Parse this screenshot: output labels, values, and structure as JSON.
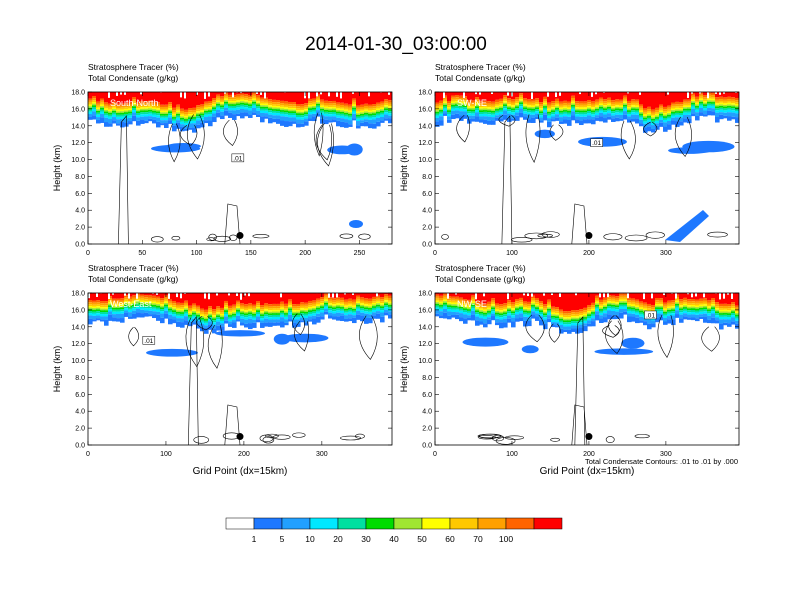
{
  "title": "2014-01-30_03:00:00",
  "field_label_1": "Stratosphere Tracer   (%)",
  "field_label_2": "Total Condensate   (g/kg)",
  "ylabel": "Height (km)",
  "xlabel": "Grid Point (dx=15km)",
  "contour_note": "Total Condensate Contours: .01 to .01 by .000",
  "contour_label": ".01",
  "colors": {
    "levels": [
      "#ffffff",
      "#1e78ff",
      "#22a0ff",
      "#00e8ff",
      "#00e0a0",
      "#00dc00",
      "#a0e632",
      "#ffff00",
      "#ffc800",
      "#ffa000",
      "#ff6400",
      "#ff0000"
    ],
    "contour": "#000000",
    "marker": "#000000"
  },
  "chart_data": [
    {
      "type": "heatmap",
      "panel": "South-North",
      "xlim": [
        0,
        280
      ],
      "ylim": [
        0,
        18
      ],
      "xticks": [
        "0",
        "50",
        "100",
        "150",
        "200",
        "250"
      ],
      "xtick_values": [
        0,
        50,
        100,
        150,
        200,
        250
      ],
      "yticks": [
        "0.0",
        "2.0",
        "4.0",
        "6.0",
        "8.0",
        "10.0",
        "12.0",
        "14.0",
        "16.0",
        "18.0"
      ],
      "marker_x": 140,
      "marker_y": 1.0,
      "contour_label_pos": [
        138,
        10.2
      ]
    },
    {
      "type": "heatmap",
      "panel": "SW-NE",
      "xlim": [
        0,
        395
      ],
      "ylim": [
        0,
        18
      ],
      "xticks": [
        "0",
        "100",
        "200",
        "300"
      ],
      "xtick_values": [
        0,
        100,
        200,
        300
      ],
      "yticks": [
        "0.0",
        "2.0",
        "4.0",
        "6.0",
        "8.0",
        "10.0",
        "12.0",
        "14.0",
        "16.0",
        "18.0"
      ],
      "marker_x": 200,
      "marker_y": 1.0,
      "contour_label_pos": [
        210,
        12.0
      ]
    },
    {
      "type": "heatmap",
      "panel": "West-East",
      "xlim": [
        0,
        390
      ],
      "ylim": [
        0,
        18
      ],
      "xticks": [
        "0",
        "100",
        "200",
        "300"
      ],
      "xtick_values": [
        0,
        100,
        200,
        300
      ],
      "yticks": [
        "0.0",
        "2.0",
        "4.0",
        "6.0",
        "8.0",
        "10.0",
        "12.0",
        "14.0",
        "16.0",
        "18.0"
      ],
      "marker_x": 195,
      "marker_y": 1.0,
      "contour_label_pos": [
        78,
        12.4
      ]
    },
    {
      "type": "heatmap",
      "panel": "NW-SE",
      "xlim": [
        0,
        395
      ],
      "ylim": [
        0,
        18
      ],
      "xticks": [
        "0",
        "100",
        "200",
        "300"
      ],
      "xtick_values": [
        0,
        100,
        200,
        300
      ],
      "yticks": [
        "0.0",
        "2.0",
        "4.0",
        "6.0",
        "8.0",
        "10.0",
        "12.0",
        "14.0",
        "16.0",
        "18.0"
      ],
      "marker_x": 200,
      "marker_y": 1.0,
      "contour_label_pos": [
        280,
        15.4
      ]
    }
  ],
  "colorbar": {
    "labels": [
      "1",
      "5",
      "10",
      "20",
      "30",
      "40",
      "50",
      "60",
      "70",
      "100"
    ]
  }
}
